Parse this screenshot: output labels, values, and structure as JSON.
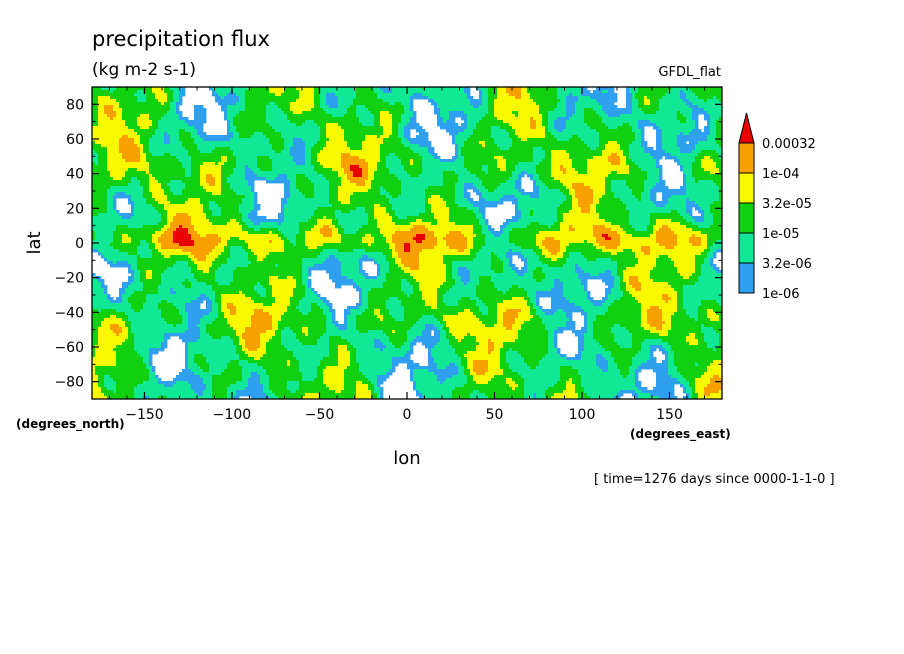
{
  "chart_data": {
    "type": "heatmap",
    "title": "precipitation flux",
    "subtitle": "(kg m-2 s-1)",
    "dataset_label": "GFDL_flat",
    "xlabel": "lon",
    "ylabel": "lat",
    "x_units": "(degrees_east)",
    "y_units": "(degrees_north)",
    "time_label": "[ time=1276 days since 0000-1-1-0 ]",
    "xlim": [
      -180,
      180
    ],
    "ylim": [
      -90,
      90
    ],
    "x_ticks": [
      -150,
      -100,
      -50,
      0,
      50,
      100,
      150
    ],
    "y_ticks": [
      -80,
      -60,
      -40,
      -20,
      0,
      20,
      40,
      60,
      80
    ],
    "x_tick_labels": [
      "−150",
      "−100",
      "−50",
      "0",
      "50",
      "100",
      "150"
    ],
    "y_tick_labels": [
      "−80",
      "−60",
      "−40",
      "−20",
      "0",
      "20",
      "40",
      "60",
      "80"
    ],
    "legend": {
      "levels": [
        "1e-06",
        "3.2e-06",
        "1e-05",
        "3.2e-05",
        "1e-04",
        "0.00032"
      ],
      "colors": [
        "#ffffff",
        "#2f9ff0",
        "#10e896",
        "#10d010",
        "#f8f800",
        "#f8a000",
        "#e80000"
      ]
    }
  }
}
